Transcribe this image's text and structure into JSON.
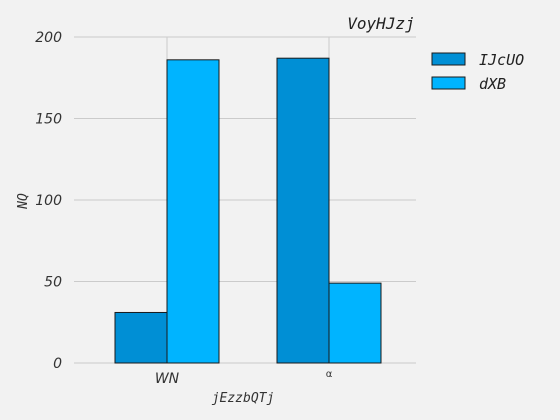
{
  "chart_data": {
    "type": "bar",
    "title": "VoyHJzj",
    "xlabel": "jEzzbQTj",
    "ylabel": "NQ",
    "categories": [
      "WN",
      "α"
    ],
    "series": [
      {
        "name": "IJcUO",
        "values": [
          31,
          187
        ],
        "color": "#008fd5"
      },
      {
        "name": "dXB",
        "values": [
          186,
          49
        ],
        "color": "#00b4ff"
      }
    ],
    "ylim": [
      0,
      200
    ],
    "yticks": [
      0,
      50,
      100,
      150,
      200
    ],
    "grid": true,
    "legend": "top-right"
  }
}
